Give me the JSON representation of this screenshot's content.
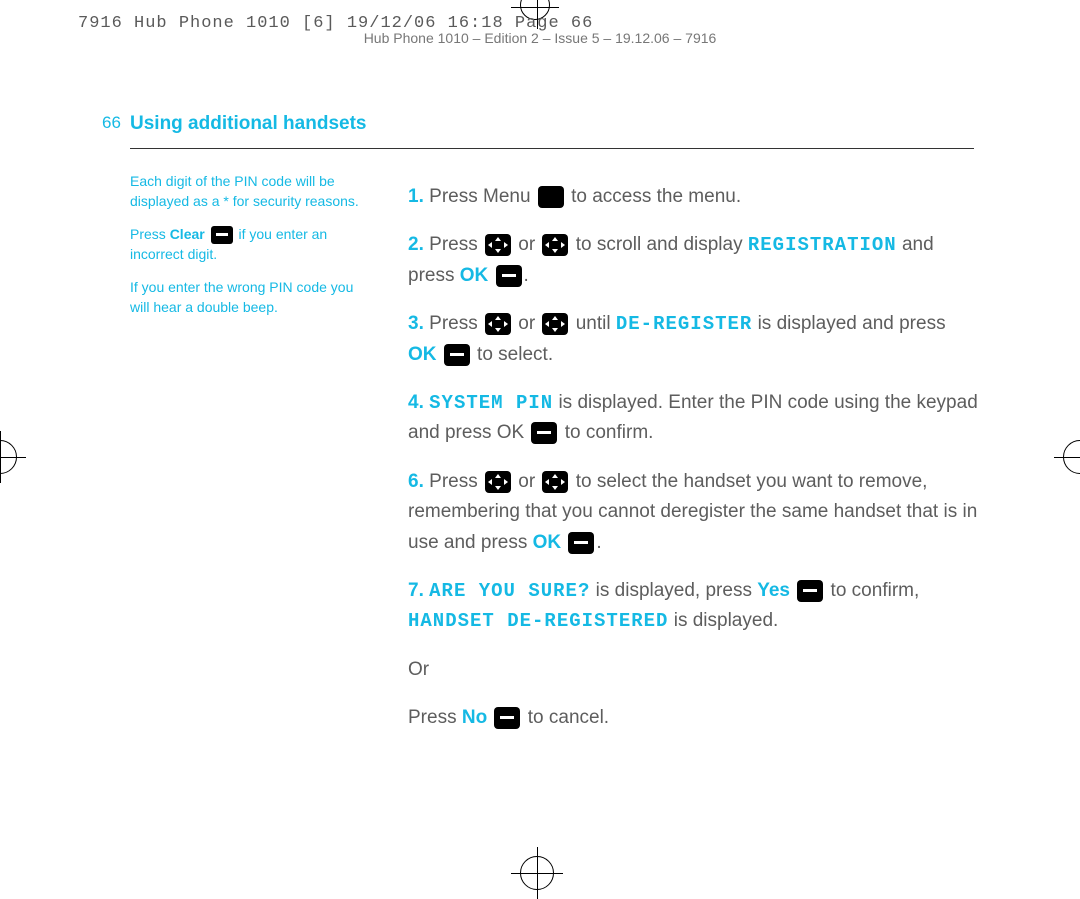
{
  "header": {
    "line1": "7916 Hub Phone 1010 [6]  19/12/06  16:18  Page 66",
    "line2": "Hub Phone 1010 – Edition 2 – Issue 5 – 19.12.06 – 7916"
  },
  "page_number": "66",
  "section_title": "Using additional handsets",
  "sidebar": {
    "p1_a": "Each digit of the PIN code will be displayed as a ",
    "p1_b": " for security reasons.",
    "star": "*",
    "p2_a": "Press ",
    "p2_clear": "Clear",
    "p2_b": " if you enter an incorrect digit.",
    "p3": "If you enter the wrong PIN code you will hear a double beep."
  },
  "steps": {
    "s1": {
      "n": "1.",
      "a": "Press Menu ",
      "b": " to access the menu."
    },
    "s2": {
      "n": "2.",
      "a": "Press ",
      "or": " or ",
      "b": " to scroll and display ",
      "reg": "REGISTRATION",
      "c": " and press ",
      "ok": "OK",
      "d": " ",
      "e": "."
    },
    "s3": {
      "n": "3.",
      "a": "Press ",
      "or": " or ",
      "b": " until ",
      "dereg": "DE-REGISTER",
      "c": " is displayed and press ",
      "ok": "OK",
      "d": " ",
      "e": " to select."
    },
    "s4": {
      "n": "4.",
      "sys": "SYSTEM PIN",
      "a": " is displayed. Enter the PIN code using the keypad and press OK ",
      "b": " to confirm."
    },
    "s6": {
      "n": "6.",
      "a": "Press ",
      "or": " or ",
      "b": " to select the handset you want to remove, remembering that you cannot deregister the same handset that is in use and press ",
      "ok": "OK",
      "c": " ",
      "d": "."
    },
    "s7": {
      "n": "7.",
      "sure": "ARE YOU SURE?",
      "a": " is displayed, press ",
      "yes": "Yes",
      "b": " ",
      "c": " to confirm, ",
      "hd": "HANDSET DE-REGISTERED",
      "d": " is displayed."
    },
    "or_line": "Or",
    "cancel_a": "Press ",
    "cancel_no": "No",
    "cancel_b": " ",
    "cancel_c": " to cancel."
  },
  "colors": {
    "accent": "#15b9e4",
    "body_text": "#5d5d5d",
    "header_text": "#777777",
    "background": "#ffffff"
  }
}
